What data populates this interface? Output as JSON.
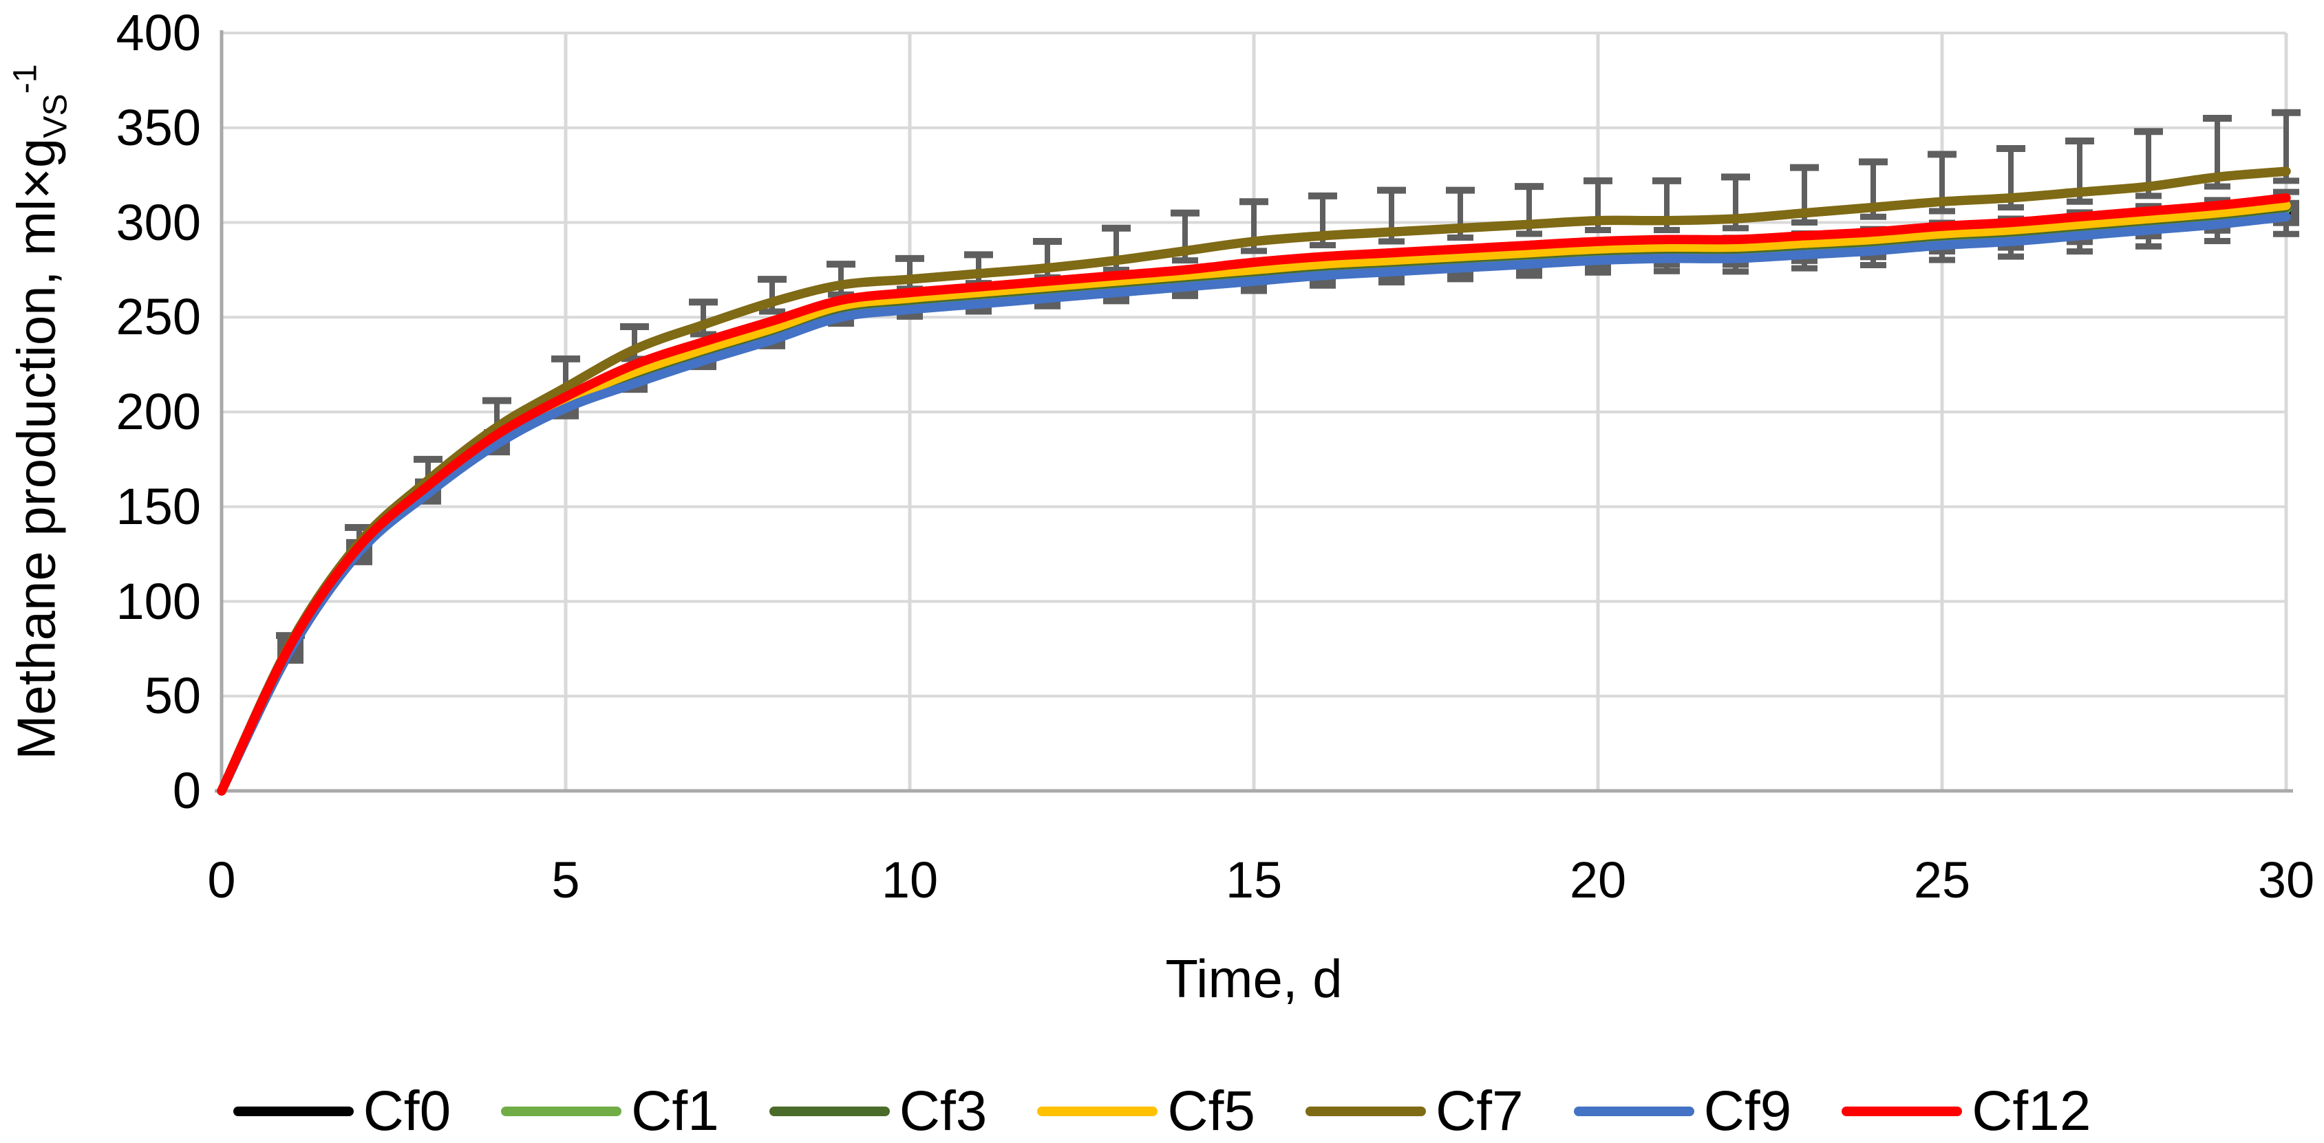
{
  "chart_data": {
    "type": "line",
    "title": "",
    "x_label": "Time, d",
    "y_label_main": "Methane production, ml×g",
    "y_label_sub": "VS",
    "y_label_sup": "-1",
    "xlim": [
      0,
      30
    ],
    "ylim": [
      0,
      400
    ],
    "x_ticks": [
      0,
      5,
      10,
      15,
      20,
      25,
      30
    ],
    "y_ticks": [
      0,
      50,
      100,
      150,
      200,
      250,
      300,
      350,
      400
    ],
    "grid": "on",
    "grid_color": "#D9D9D9",
    "axis_color": "#A9A9A9",
    "legend_position": "bottom",
    "x": [
      0,
      1,
      2,
      3,
      4,
      5,
      6,
      7,
      8,
      9,
      10,
      11,
      12,
      13,
      14,
      15,
      16,
      17,
      18,
      19,
      20,
      21,
      22,
      23,
      24,
      25,
      26,
      27,
      28,
      29,
      30
    ],
    "series": [
      {
        "name": "Cf0",
        "color": "#000000",
        "values": [
          0,
          74,
          126,
          158,
          184,
          203,
          217,
          229,
          240,
          252,
          256,
          259,
          262,
          265,
          268,
          271,
          274,
          276,
          278,
          280,
          282,
          283,
          283,
          285,
          287,
          290,
          292,
          295,
          298,
          301,
          305
        ]
      },
      {
        "name": "Cf1",
        "color": "#70AD47",
        "values": [
          0,
          75,
          127,
          158,
          185,
          204,
          219,
          231,
          242,
          254,
          258,
          261,
          264,
          267,
          270,
          273,
          276,
          278,
          280,
          282,
          284,
          285,
          285,
          287,
          289,
          292,
          294,
          297,
          300,
          303,
          307
        ]
      },
      {
        "name": "Cf3",
        "color": "#4A6B29",
        "values": [
          0,
          75,
          127,
          159,
          185,
          205,
          220,
          232,
          243,
          255,
          259,
          262,
          265,
          268,
          271,
          274,
          277,
          279,
          281,
          283,
          285,
          286,
          286,
          288,
          290,
          293,
          295,
          298,
          301,
          304,
          308
        ]
      },
      {
        "name": "Cf5",
        "color": "#FFC000",
        "values": [
          0,
          76,
          128,
          159,
          186,
          206,
          221,
          233,
          244,
          256,
          260,
          263,
          266,
          269,
          272,
          275,
          278,
          280,
          282,
          284,
          286,
          287,
          287,
          289,
          291,
          294,
          296,
          299,
          302,
          305,
          309
        ]
      },
      {
        "name": "Cf7",
        "color": "#7F6A15",
        "values": [
          0,
          78,
          131,
          164,
          192,
          213,
          233,
          246,
          258,
          267,
          270,
          273,
          276,
          280,
          285,
          290,
          293,
          295,
          297,
          299,
          301,
          301,
          302,
          305,
          308,
          311,
          313,
          316,
          319,
          324,
          327
        ]
      },
      {
        "name": "Cf9",
        "color": "#4472C4",
        "values": [
          0,
          74,
          126,
          157,
          183,
          202,
          215,
          227,
          238,
          250,
          254,
          257,
          260,
          263,
          266,
          269,
          272,
          274,
          276,
          278,
          280,
          281,
          281,
          283,
          285,
          288,
          290,
          293,
          296,
          299,
          303
        ]
      },
      {
        "name": "Cf12",
        "color": "#FF0000",
        "values": [
          0,
          77,
          129,
          161,
          188,
          208,
          225,
          237,
          248,
          259,
          263,
          266,
          269,
          272,
          275,
          279,
          282,
          284,
          286,
          288,
          290,
          291,
          291,
          293,
          295,
          298,
          300,
          303,
          306,
          309,
          313
        ]
      }
    ],
    "error_bars": {
      "color": "#5F5F5F",
      "upper_attached_to": "Cf7",
      "upper_amounts": [
        4,
        8,
        11,
        14,
        15,
        12,
        12,
        12,
        11,
        11,
        10,
        14,
        17,
        20,
        21,
        21,
        22,
        20,
        20,
        21,
        21,
        22,
        24,
        24,
        25,
        26,
        27,
        29,
        31,
        31
      ],
      "lower_amount_below_Cf7": 5,
      "marker_series": "Cf0",
      "marker_shape": "square",
      "marker_color": "#5F5F5F",
      "marker_plus_minus": [
        3.3,
        3.5,
        3.8,
        4.1,
        4.4,
        4.6,
        4.9,
        5.2,
        5.4,
        5.7,
        6,
        6.2,
        6.5,
        6.8,
        7.1,
        7.3,
        7.6,
        7.9,
        8.1,
        8.4,
        8.7,
        8.9,
        9.2,
        9.5,
        9.8,
        10,
        10.3,
        10.6,
        10.8,
        11.1
      ]
    },
    "legend": [
      "Cf0",
      "Cf1",
      "Cf3",
      "Cf5",
      "Cf7",
      "Cf9",
      "Cf12"
    ]
  }
}
